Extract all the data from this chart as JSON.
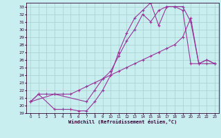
{
  "xlabel": "Windchill (Refroidissement éolien,°C)",
  "bg_color": "#c8eef0",
  "line_color": "#993399",
  "grid_color": "#aacccc",
  "xlim": [
    -0.5,
    23.5
  ],
  "ylim": [
    19,
    33.5
  ],
  "xticks": [
    0,
    1,
    2,
    3,
    4,
    5,
    6,
    7,
    8,
    9,
    10,
    11,
    12,
    13,
    14,
    15,
    16,
    17,
    18,
    19,
    20,
    21,
    22,
    23
  ],
  "yticks": [
    19,
    20,
    21,
    22,
    23,
    24,
    25,
    26,
    27,
    28,
    29,
    30,
    31,
    32,
    33
  ],
  "line1_x": [
    0,
    1,
    2,
    3,
    4,
    5,
    6,
    7,
    8,
    9,
    10,
    11,
    12,
    13,
    14,
    15,
    16,
    17,
    18,
    19,
    20,
    21,
    22,
    23
  ],
  "line1_y": [
    20.5,
    21.5,
    21.5,
    21.5,
    21.5,
    21.5,
    22.0,
    22.5,
    23.0,
    23.5,
    24.0,
    24.5,
    25.0,
    25.5,
    26.0,
    26.5,
    27.0,
    27.5,
    28.0,
    29.0,
    31.5,
    25.5,
    26.0,
    25.5
  ],
  "line2_x": [
    0,
    1,
    3,
    4,
    5,
    6,
    7,
    8,
    9,
    10,
    11,
    12,
    13,
    14,
    15,
    16,
    17,
    18,
    19,
    20,
    21,
    22,
    23
  ],
  "line2_y": [
    20.5,
    21.5,
    19.5,
    19.5,
    19.5,
    19.3,
    19.3,
    20.5,
    22.0,
    24.0,
    27.0,
    29.5,
    31.5,
    32.5,
    33.5,
    30.5,
    33.0,
    33.0,
    33.0,
    31.0,
    25.5,
    25.5,
    25.5
  ],
  "line3_x": [
    0,
    3,
    7,
    8,
    9,
    10,
    11,
    12,
    13,
    14,
    15,
    16,
    17,
    18,
    19,
    20,
    21,
    22,
    23
  ],
  "line3_y": [
    20.5,
    21.5,
    20.5,
    22.0,
    23.5,
    24.5,
    26.5,
    28.5,
    30.0,
    32.0,
    31.0,
    32.5,
    33.0,
    33.0,
    32.5,
    25.5,
    25.5,
    26.0,
    25.5
  ]
}
